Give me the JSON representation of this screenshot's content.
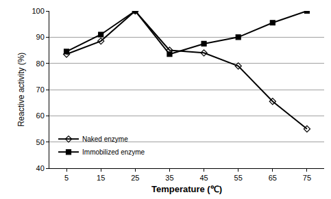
{
  "chart_data": {
    "type": "line",
    "x_label": "Temperature (℃)",
    "y_label": "Reactive activity (%)",
    "x": [
      5,
      15,
      25,
      35,
      45,
      55,
      65,
      75
    ],
    "xlim": [
      0,
      80
    ],
    "xticks": [
      5,
      15,
      25,
      35,
      45,
      55,
      65,
      75
    ],
    "ylim": [
      40,
      100
    ],
    "yticks": [
      40,
      50,
      60,
      70,
      80,
      90,
      100
    ],
    "grid": true,
    "legend": "bottom left",
    "series": [
      {
        "name": "Naked enzyme",
        "color": "#000000",
        "marker": "diamond-open",
        "line_style": "solid",
        "values": [
          83.5,
          88.5,
          100,
          85,
          84,
          79,
          65.5,
          55
        ]
      },
      {
        "name": "Immobilized enzyme",
        "color": "#000000",
        "marker": "square",
        "line_style": "solid",
        "values": [
          84.5,
          91,
          100,
          83.5,
          87.5,
          90,
          95.5,
          100
        ]
      }
    ]
  }
}
